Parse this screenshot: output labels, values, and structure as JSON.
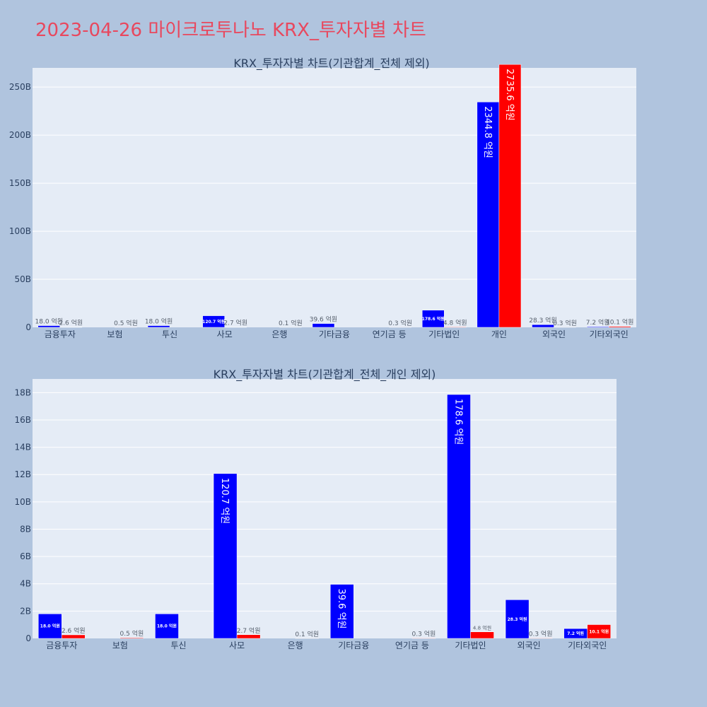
{
  "title": "2023-04-26 마이크로투나노 KRX_투자자별 차트",
  "colors": {
    "background": "#b0c4de",
    "plot_bg": "#e5ecf6",
    "title": "#e8485e",
    "buy": "#0000ff",
    "sell": "#ff0000",
    "text": "#2a3f5f"
  },
  "chart_data": [
    {
      "type": "bar",
      "title": "KRX_투자자별 차트(기관합계_전체 제외)",
      "categories": [
        "금융투자",
        "보험",
        "투신",
        "사모",
        "은행",
        "기타금융",
        "연기금 등",
        "기타법인",
        "개인",
        "외국인",
        "기타외국인"
      ],
      "ylim": [
        0,
        270000000000
      ],
      "yticks": [
        0,
        50000000000,
        100000000000,
        150000000000,
        200000000000,
        250000000000
      ],
      "ytick_labels": [
        "0",
        "50B",
        "100B",
        "150B",
        "200B",
        "250B"
      ],
      "grid": true,
      "series": [
        {
          "color": "#0000ff",
          "values": [
            1800000000,
            0,
            1800000000,
            12070000000,
            0,
            3960000000,
            0,
            17860000000,
            234480000000,
            2830000000,
            720000000
          ],
          "labels": [
            "18.0 억원",
            "",
            "18.0 억원",
            "120.7 억원",
            "",
            "39.6 억원",
            "",
            "178.6 억원",
            "2344.8 억원",
            "28.3 억원",
            "7.2 억원"
          ]
        },
        {
          "color": "#ff0000",
          "values": [
            260000000,
            50000000,
            0,
            270000000,
            10000000,
            0,
            30000000,
            480000000,
            273560000000,
            30000000,
            1010000000
          ],
          "labels": [
            "2.6 억원",
            "0.5 억원",
            "",
            "2.7 억원",
            "0.1 억원",
            "",
            "0.3 억원",
            "4.8 억원",
            "2735.6 억원",
            "0.3 억원",
            "10.1 억원"
          ]
        }
      ]
    },
    {
      "type": "bar",
      "title": "KRX_투자자별 차트(기관합계_전체_개인 제외)",
      "categories": [
        "금융투자",
        "보험",
        "투신",
        "사모",
        "은행",
        "기타금융",
        "연기금 등",
        "기타법인",
        "외국인",
        "기타외국인"
      ],
      "ylim": [
        0,
        19000000000
      ],
      "yticks": [
        0,
        2000000000,
        4000000000,
        6000000000,
        8000000000,
        10000000000,
        12000000000,
        14000000000,
        16000000000,
        18000000000
      ],
      "ytick_labels": [
        "0",
        "2B",
        "4B",
        "6B",
        "8B",
        "10B",
        "12B",
        "14B",
        "16B",
        "18B"
      ],
      "grid": true,
      "series": [
        {
          "color": "#0000ff",
          "values": [
            1800000000,
            0,
            1800000000,
            12070000000,
            0,
            3960000000,
            0,
            17860000000,
            2830000000,
            720000000
          ],
          "labels": [
            "18.0 억원",
            "",
            "18.0 억원",
            "120.7 억원",
            "",
            "39.6 억원",
            "",
            "178.6 억원",
            "28.3 억원",
            "7.2 억원"
          ]
        },
        {
          "color": "#ff0000",
          "values": [
            260000000,
            50000000,
            0,
            270000000,
            10000000,
            0,
            30000000,
            480000000,
            30000000,
            1010000000
          ],
          "labels": [
            "2.6 억원",
            "0.5 억원",
            "",
            "2.7 억원",
            "0.1 억원",
            "",
            "0.3 억원",
            "4.8 억원",
            "0.3 억원",
            "10.1 억원"
          ]
        }
      ]
    }
  ]
}
